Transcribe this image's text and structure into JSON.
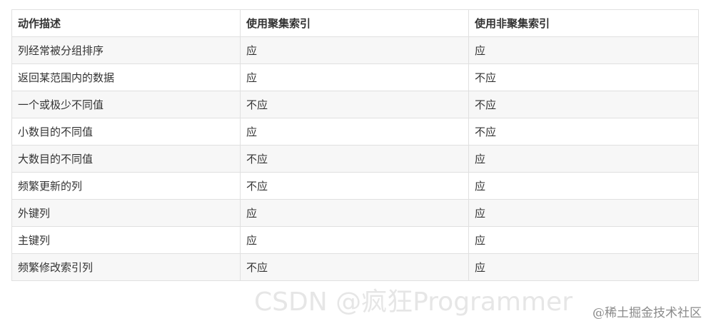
{
  "table": {
    "headers": [
      "动作描述",
      "使用聚集索引",
      "使用非聚集索引"
    ],
    "rows": [
      [
        "列经常被分组排序",
        "应",
        "应"
      ],
      [
        "返回某范围内的数据",
        "应",
        "不应"
      ],
      [
        "一个或极少不同值",
        "不应",
        "不应"
      ],
      [
        "小数目的不同值",
        "应",
        "不应"
      ],
      [
        "大数目的不同值",
        "不应",
        "应"
      ],
      [
        "频繁更新的列",
        "不应",
        "应"
      ],
      [
        "外键列",
        "应",
        "应"
      ],
      [
        "主键列",
        "应",
        "应"
      ],
      [
        "频繁修改索引列",
        "不应",
        "应"
      ]
    ]
  },
  "watermarks": {
    "csdn": "CSDN @疯狂Programmer",
    "juejin": "@稀土掘金技术社区"
  }
}
